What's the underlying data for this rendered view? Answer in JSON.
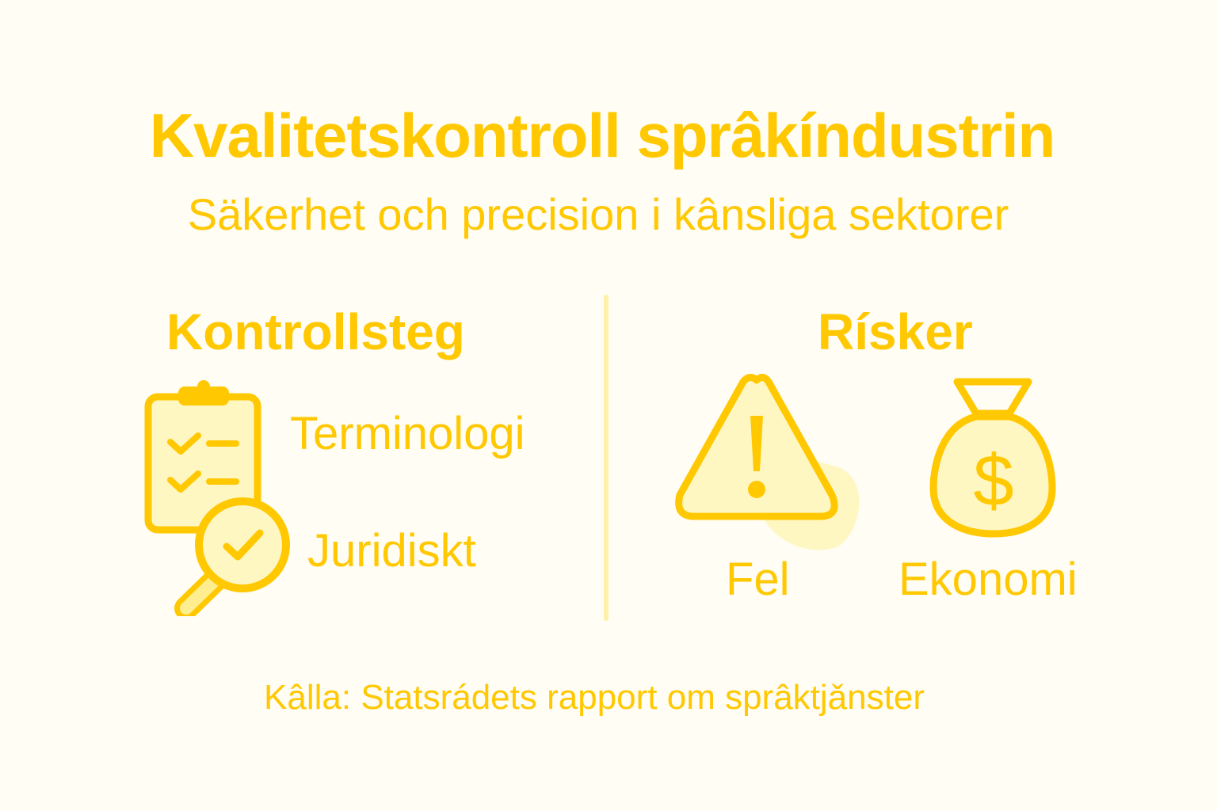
{
  "title": "Kvalitetskontroll sprâkíndustrin",
  "subtitle": "Säkerhet och precision i kânsliga sektorer",
  "left": {
    "heading": "Kontrollsteg",
    "items": [
      {
        "label": "Terminologi",
        "icon": "clipboard-checklist-icon"
      },
      {
        "label": "Juridiskt",
        "icon": "magnifier-check-icon"
      }
    ]
  },
  "right": {
    "heading": "Rísker",
    "items": [
      {
        "label": "Fel",
        "icon": "warning-triangle-icon"
      },
      {
        "label": "Ekonomi",
        "icon": "money-bag-icon"
      }
    ]
  },
  "footer": "Kâlla: Statsrádets rapport om sprâktjǎnster",
  "colors": {
    "accent": "#FFC800",
    "fill": "#FFF7C2",
    "background": "#FFFDF4"
  }
}
